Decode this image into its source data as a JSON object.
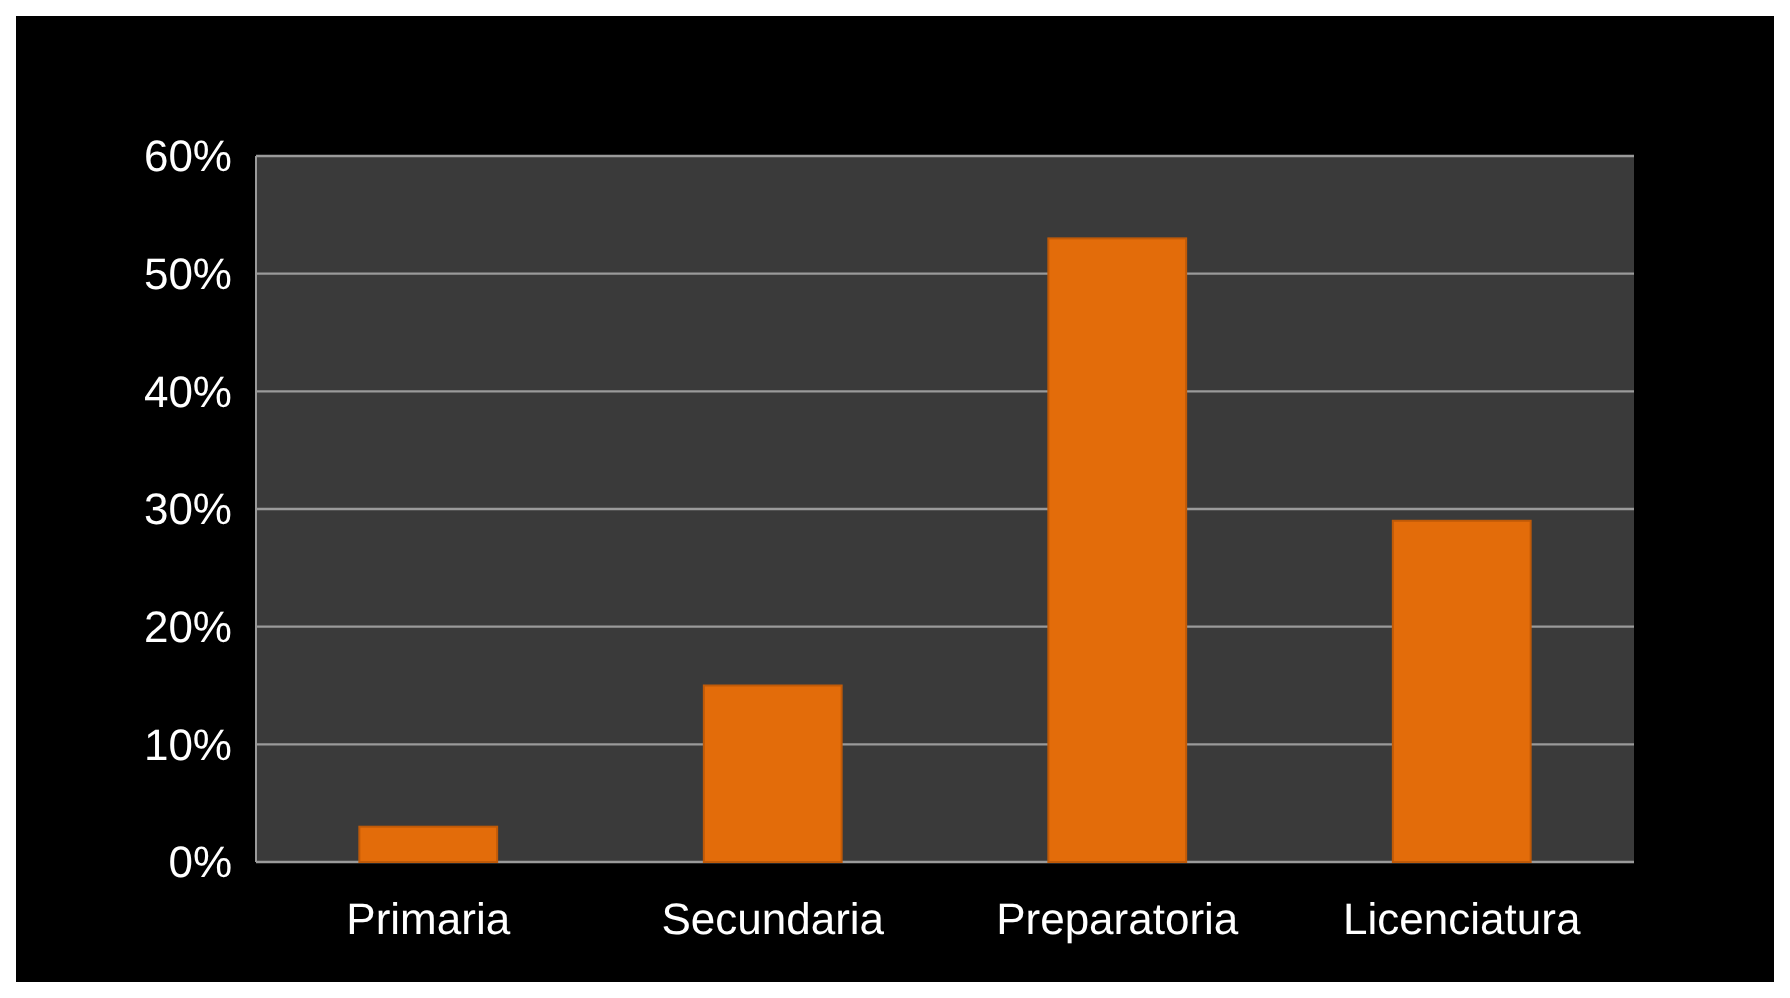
{
  "chart_data": {
    "type": "bar",
    "categories": [
      "Primaria",
      "Secundaria",
      "Preparatoria",
      "Licenciatura"
    ],
    "values": [
      3,
      15,
      53,
      29
    ],
    "color": "#e36c0a",
    "ylim": [
      0,
      60
    ],
    "yticks": [
      {
        "value": 0,
        "label": "0%"
      },
      {
        "value": 10,
        "label": "10%"
      },
      {
        "value": 20,
        "label": "20%"
      },
      {
        "value": 30,
        "label": "30%"
      },
      {
        "value": 40,
        "label": "40%"
      },
      {
        "value": 50,
        "label": "50%"
      },
      {
        "value": 60,
        "label": "60%"
      }
    ],
    "grid": true
  }
}
